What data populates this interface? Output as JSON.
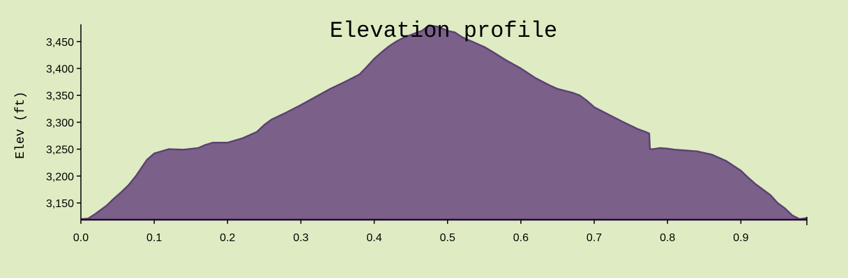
{
  "chart_data": {
    "type": "area",
    "title": "Elevation profile",
    "xlabel": "",
    "ylabel": "Elev (ft)",
    "xlim": [
      0.0,
      0.99
    ],
    "ylim": [
      3119,
      3482
    ],
    "x_ticks": [
      "0.0",
      "0.1",
      "0.2",
      "0.3",
      "0.4",
      "0.5",
      "0.6",
      "0.7",
      "0.8",
      "0.9"
    ],
    "y_ticks": [
      "3,150",
      "3,200",
      "3,250",
      "3,300",
      "3,350",
      "3,400",
      "3,450"
    ],
    "grid": false,
    "colors": {
      "background": "#dfebc2",
      "area_fill": "#7b618a",
      "area_stroke": "#5c4273"
    },
    "series": [
      {
        "x": [
          0.0,
          0.01,
          0.02,
          0.035,
          0.045,
          0.055,
          0.065,
          0.075,
          0.09,
          0.1,
          0.11,
          0.12,
          0.14,
          0.16,
          0.17,
          0.18,
          0.2,
          0.21,
          0.22,
          0.24,
          0.25,
          0.26,
          0.28,
          0.3,
          0.32,
          0.34,
          0.36,
          0.38,
          0.39,
          0.4,
          0.41,
          0.42,
          0.43,
          0.44,
          0.455,
          0.465,
          0.475,
          0.485,
          0.49,
          0.5,
          0.51,
          0.52,
          0.53,
          0.54,
          0.55,
          0.56,
          0.58,
          0.6,
          0.62,
          0.64,
          0.65,
          0.67,
          0.68,
          0.69,
          0.7,
          0.72,
          0.74,
          0.76,
          0.77,
          0.775,
          0.776,
          0.78,
          0.79,
          0.8,
          0.81,
          0.82,
          0.84,
          0.86,
          0.88,
          0.9,
          0.91,
          0.92,
          0.94,
          0.95,
          0.96,
          0.97,
          0.98,
          0.985,
          0.99
        ],
        "values": [
          3120,
          3121,
          3130,
          3145,
          3158,
          3170,
          3183,
          3200,
          3230,
          3242,
          3246,
          3250,
          3249,
          3252,
          3258,
          3262,
          3262,
          3266,
          3270,
          3282,
          3295,
          3305,
          3318,
          3332,
          3347,
          3362,
          3375,
          3389,
          3403,
          3418,
          3430,
          3441,
          3450,
          3457,
          3465,
          3470,
          3480,
          3478,
          3476,
          3470,
          3467,
          3458,
          3452,
          3446,
          3440,
          3432,
          3415,
          3400,
          3382,
          3368,
          3362,
          3355,
          3350,
          3340,
          3328,
          3314,
          3300,
          3287,
          3282,
          3279,
          3250,
          3250,
          3252,
          3251,
          3249,
          3248,
          3246,
          3240,
          3228,
          3210,
          3197,
          3185,
          3165,
          3150,
          3140,
          3127,
          3120,
          3121,
          3122
        ]
      }
    ]
  }
}
